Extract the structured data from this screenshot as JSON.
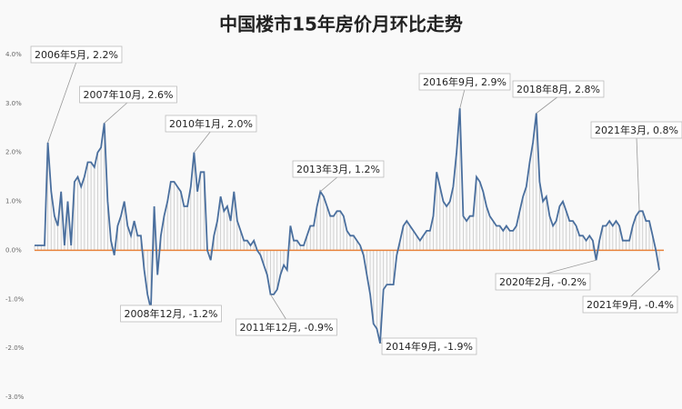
{
  "chart_data": {
    "type": "line",
    "title": "中国楼市15年房价月环比走势",
    "values": [
      0.1,
      0.1,
      0.1,
      0.1,
      2.2,
      1.2,
      0.7,
      0.5,
      1.2,
      0.1,
      1.0,
      0.1,
      1.4,
      1.5,
      1.3,
      1.5,
      1.8,
      1.8,
      1.7,
      2.0,
      2.1,
      2.6,
      1.0,
      0.2,
      -0.1,
      0.5,
      0.7,
      1.0,
      0.5,
      0.3,
      0.6,
      0.3,
      0.3,
      -0.4,
      -0.9,
      -1.2,
      0.9,
      -0.5,
      0.3,
      0.7,
      1.0,
      1.4,
      1.4,
      1.3,
      1.2,
      0.9,
      0.9,
      1.3,
      2.0,
      1.2,
      1.6,
      1.6,
      0.0,
      -0.2,
      0.3,
      0.6,
      1.1,
      0.8,
      0.9,
      0.6,
      1.2,
      0.6,
      0.4,
      0.2,
      0.2,
      0.1,
      0.2,
      0.0,
      -0.1,
      -0.3,
      -0.5,
      -0.9,
      -0.9,
      -0.8,
      -0.5,
      -0.3,
      -0.4,
      0.5,
      0.2,
      0.2,
      0.1,
      0.1,
      0.3,
      0.5,
      0.5,
      0.9,
      1.2,
      1.1,
      0.9,
      0.7,
      0.7,
      0.8,
      0.8,
      0.7,
      0.4,
      0.3,
      0.3,
      0.2,
      0.1,
      -0.1,
      -0.5,
      -0.9,
      -1.5,
      -1.6,
      -1.9,
      -0.8,
      -0.7,
      -0.7,
      -0.7,
      -0.1,
      0.2,
      0.5,
      0.6,
      0.5,
      0.4,
      0.3,
      0.2,
      0.3,
      0.4,
      0.4,
      0.7,
      1.6,
      1.3,
      1.0,
      0.9,
      1.0,
      1.3,
      2.0,
      2.9,
      0.7,
      0.6,
      0.7,
      0.7,
      1.5,
      1.4,
      1.2,
      0.9,
      0.7,
      0.6,
      0.5,
      0.5,
      0.4,
      0.5,
      0.4,
      0.4,
      0.5,
      0.8,
      1.1,
      1.3,
      1.8,
      2.2,
      2.8,
      1.4,
      1.0,
      1.1,
      0.7,
      0.5,
      0.6,
      0.9,
      1.0,
      0.8,
      0.6,
      0.6,
      0.5,
      0.3,
      0.3,
      0.2,
      0.3,
      0.2,
      -0.2,
      0.2,
      0.5,
      0.5,
      0.6,
      0.5,
      0.6,
      0.5,
      0.2,
      0.2,
      0.2,
      0.5,
      0.7,
      0.8,
      0.8,
      0.6,
      0.6,
      0.3,
      0.0,
      -0.4
    ],
    "color": "#4a6f9e",
    "zero_line_color": "#e8823a",
    "drop_lines": true,
    "ylim": [
      -3,
      4
    ],
    "yticks": [
      {
        "value": 4,
        "label": "4.0%"
      },
      {
        "value": 3,
        "label": "3.0%"
      },
      {
        "value": 2,
        "label": "2.0%"
      },
      {
        "value": 1,
        "label": "1.0%"
      },
      {
        "value": 0,
        "label": "0.0%"
      },
      {
        "value": -1,
        "label": "-1.0%"
      },
      {
        "value": -2,
        "label": "-2.0%"
      },
      {
        "value": -3,
        "label": "-3.0%"
      }
    ],
    "annotations": [
      "2006年5月, 2.2%",
      "2007年10月, 2.6%",
      "2010年1月, 2.0%",
      "2013年3月, 1.2%",
      "2016年9月, 2.9%",
      "2018年8月, 2.8%",
      "2021年3月, 0.8%",
      "2008年12月, -1.2%",
      "2011年12月, -0.9%",
      "2014年9月, -1.9%",
      "2020年2月, -0.2%",
      "2021年9月, -0.4%"
    ]
  }
}
